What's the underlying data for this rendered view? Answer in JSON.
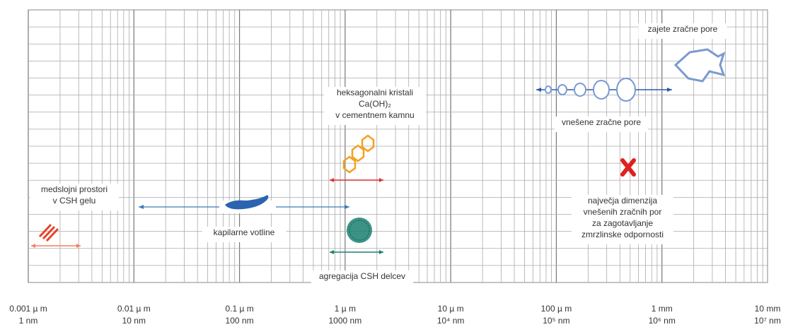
{
  "axis": {
    "ticks": [
      {
        "um": "0.001 µ m",
        "nm": "1 nm"
      },
      {
        "um": "0.01 µ m",
        "nm": "10 nm"
      },
      {
        "um": "0.1 µ m",
        "nm": "100 nm"
      },
      {
        "um": "1 µ m",
        "nm": "1000 nm"
      },
      {
        "um": "10 µ m",
        "nm": "10⁴ nm"
      },
      {
        "um": "100 µ m",
        "nm": "10⁵ nm"
      },
      {
        "um": "1 mm",
        "nm": "10⁶ nm"
      },
      {
        "um": "10 mm",
        "nm": "10⁷ nm"
      }
    ]
  },
  "labels": {
    "entrapped": "zajete zračne pore",
    "crystals": [
      "heksagonalni kristali",
      "Ca(OH)₂",
      "v cementnem kamnu"
    ],
    "entrained": "vnešene zračne pore",
    "interlayer": [
      "medslojni prostori",
      "v CSH gelu"
    ],
    "capillary": "kapilarne votline",
    "maxdim": [
      "največja dimenzija",
      "vnešenih zračnih por",
      "za zagotavljanje",
      "zmrzlinske odpornosti"
    ],
    "csh": "agregacija CSH delcev"
  }
}
